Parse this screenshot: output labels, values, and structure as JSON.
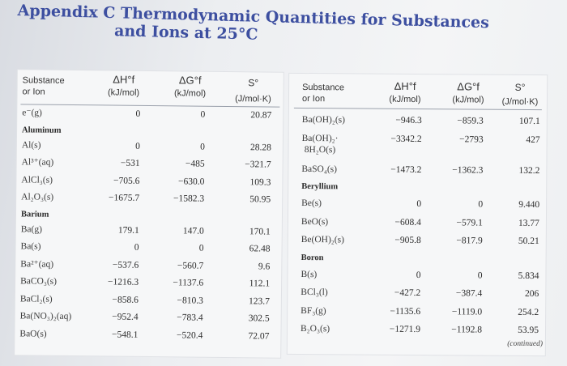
{
  "title_line1": "Appendix C  Thermodynamic Quantities for Substances",
  "title_line2": "and Ions at 25°C",
  "left_table": {
    "headers": {
      "substance": "Substance",
      "substance2": "or Ion",
      "dh": "ΔH°f",
      "dh_unit": "(kJ/mol)",
      "dg": "ΔG°f",
      "dg_unit": "(kJ/mol)",
      "s": "S°",
      "s_unit": "(J/mol·K)"
    },
    "rows": [
      {
        "name": "e⁻(g)",
        "dh": "0",
        "dg": "0",
        "s": "20.87"
      },
      {
        "name": "Aluminum",
        "section": true
      },
      {
        "name": "Al(s)",
        "dh": "0",
        "dg": "0",
        "s": "28.28"
      },
      {
        "name": "Al³⁺(aq)",
        "dh": "−531",
        "dg": "−485",
        "s": "−321.7"
      },
      {
        "name": "AlCl₃(s)",
        "dh": "−705.6",
        "dg": "−630.0",
        "s": "109.3"
      },
      {
        "name": "Al₂O₃(s)",
        "dh": "−1675.7",
        "dg": "−1582.3",
        "s": "50.95"
      },
      {
        "name": "Barium",
        "section": true
      },
      {
        "name": "Ba(g)",
        "dh": "179.1",
        "dg": "147.0",
        "s": "170.1"
      },
      {
        "name": "Ba(s)",
        "dh": "0",
        "dg": "0",
        "s": "62.48"
      },
      {
        "name": "Ba²⁺(aq)",
        "dh": "−537.6",
        "dg": "−560.7",
        "s": "9.6"
      },
      {
        "name": "BaCO₃(s)",
        "dh": "−1216.3",
        "dg": "−1137.6",
        "s": "112.1"
      },
      {
        "name": "BaCl₂(s)",
        "dh": "−858.6",
        "dg": "−810.3",
        "s": "123.7"
      },
      {
        "name": "Ba(NO₃)₂(aq)",
        "dh": "−952.4",
        "dg": "−783.4",
        "s": "302.5"
      },
      {
        "name": "BaO(s)",
        "dh": "−548.1",
        "dg": "−520.4",
        "s": "72.07"
      }
    ]
  },
  "right_table": {
    "headers": {
      "substance": "Substance",
      "substance2": "or Ion",
      "dh": "ΔH°f",
      "dh_unit": "(kJ/mol)",
      "dg": "ΔG°f",
      "dg_unit": "(kJ/mol)",
      "s": "S°",
      "s_unit": "(J/mol·K)"
    },
    "rows": [
      {
        "name": "Ba(OH)₂(s)",
        "dh": "−946.3",
        "dg": "−859.3",
        "s": "107.1"
      },
      {
        "name": "Ba(OH)₂·\n8H₂O(s)",
        "dh": "−3342.2",
        "dg": "−2793",
        "s": "427"
      },
      {
        "name": "BaSO₄(s)",
        "dh": "−1473.2",
        "dg": "−1362.3",
        "s": "132.2"
      },
      {
        "name": "Beryllium",
        "section": true
      },
      {
        "name": "Be(s)",
        "dh": "0",
        "dg": "0",
        "s": "9.440"
      },
      {
        "name": "BeO(s)",
        "dh": "−608.4",
        "dg": "−579.1",
        "s": "13.77"
      },
      {
        "name": "Be(OH)₂(s)",
        "dh": "−905.8",
        "dg": "−817.9",
        "s": "50.21"
      },
      {
        "name": "Boron",
        "section": true
      },
      {
        "name": "B(s)",
        "dh": "0",
        "dg": "0",
        "s": "5.834"
      },
      {
        "name": "BCl₃(l)",
        "dh": "−427.2",
        "dg": "−387.4",
        "s": "206"
      },
      {
        "name": "BF₃(g)",
        "dh": "−1135.6",
        "dg": "−1119.0",
        "s": "254.2"
      },
      {
        "name": "B₂O₃(s)",
        "dh": "−1271.9",
        "dg": "−1192.8",
        "s": "53.95"
      }
    ]
  },
  "continued_note": "(continued)",
  "colors": {
    "title": "#3d4fa0",
    "background": "#e9ebef"
  }
}
